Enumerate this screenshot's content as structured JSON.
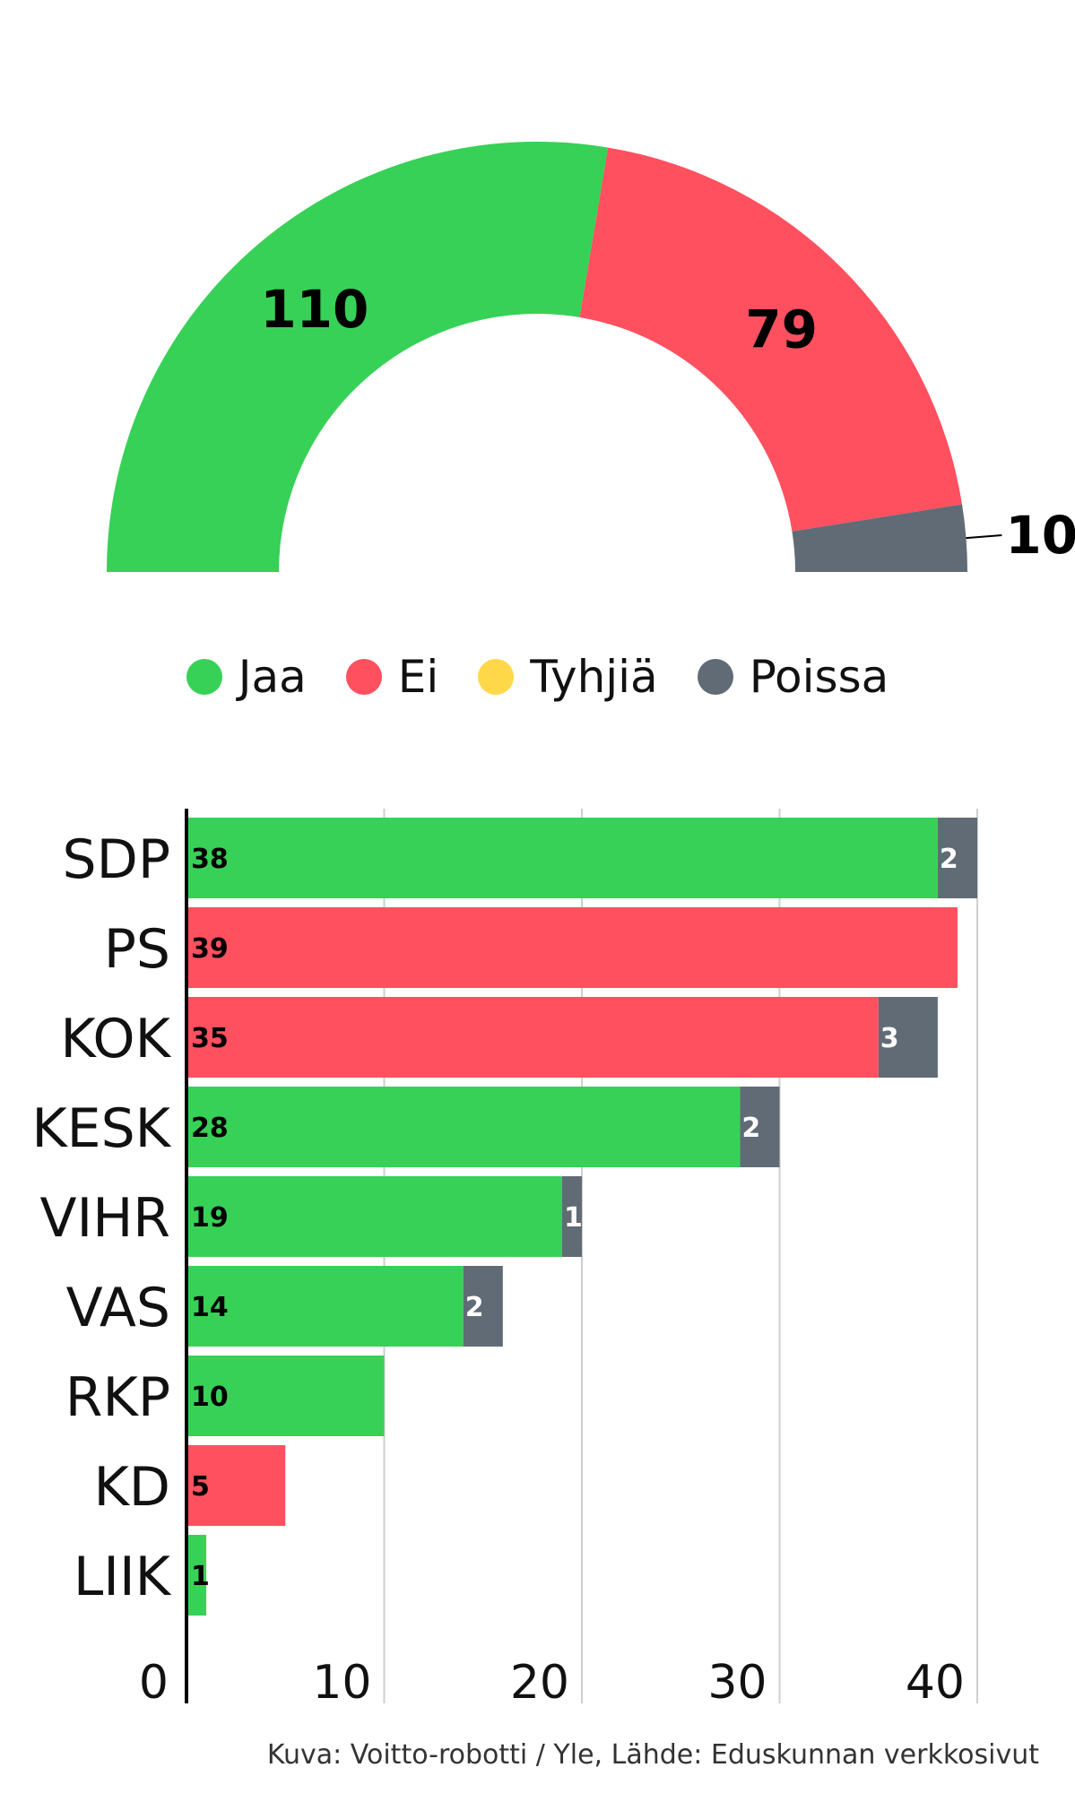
{
  "colors": {
    "Jaa": "#37d157",
    "Ei": "#ff505f",
    "Tyhjiä": "#ffd84a",
    "Poissa": "#606b75",
    "grid": "#cfcfcf",
    "axis": "#000000"
  },
  "legend": [
    {
      "label": "Jaa",
      "color": "#37d157"
    },
    {
      "label": "Ei",
      "color": "#ff505f"
    },
    {
      "label": "Tyhjiä",
      "color": "#ffd84a"
    },
    {
      "label": "Poissa",
      "color": "#606b75"
    }
  ],
  "credit": "Kuva: Voitto-robotti / Yle, Lähde: Eduskunnan verkkosivut",
  "chart_data": [
    {
      "type": "pie",
      "variant": "half-donut",
      "slices": [
        {
          "label": "Jaa",
          "value": 110,
          "color": "#37d157"
        },
        {
          "label": "Ei",
          "value": 79,
          "color": "#ff505f"
        },
        {
          "label": "Poissa",
          "value": 10,
          "color": "#606b75"
        }
      ]
    },
    {
      "type": "bar",
      "orientation": "horizontal",
      "stacked": true,
      "categories": [
        "SDP",
        "PS",
        "KOK",
        "KESK",
        "VIHR",
        "VAS",
        "RKP",
        "KD",
        "LIIK"
      ],
      "vote_series": [
        {
          "category": "SDP",
          "label": "Jaa",
          "value": 38
        },
        {
          "category": "PS",
          "label": "Ei",
          "value": 39
        },
        {
          "category": "KOK",
          "label": "Ei",
          "value": 35
        },
        {
          "category": "KESK",
          "label": "Jaa",
          "value": 28
        },
        {
          "category": "VIHR",
          "label": "Jaa",
          "value": 19
        },
        {
          "category": "VAS",
          "label": "Jaa",
          "value": 14
        },
        {
          "category": "RKP",
          "label": "Jaa",
          "value": 10
        },
        {
          "category": "KD",
          "label": "Ei",
          "value": 5
        },
        {
          "category": "LIIK",
          "label": "Jaa",
          "value": 1
        }
      ],
      "poissa_values": [
        2,
        0,
        3,
        2,
        1,
        2,
        0,
        0,
        0
      ],
      "xticks": [
        "0",
        "10",
        "20",
        "30",
        "40"
      ],
      "xlim": [
        0,
        40
      ],
      "grid": true
    }
  ]
}
